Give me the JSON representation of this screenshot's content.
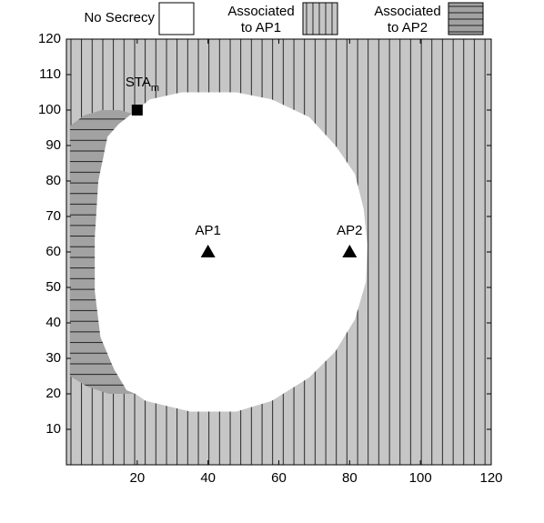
{
  "chart_data": {
    "type": "region-map",
    "xlim": [
      0,
      120
    ],
    "ylim": [
      0,
      120
    ],
    "xticks": [
      20,
      40,
      60,
      80,
      100,
      120
    ],
    "yticks": [
      10,
      20,
      30,
      40,
      50,
      60,
      70,
      80,
      90,
      100,
      110,
      120
    ],
    "regions": [
      {
        "name": [
          "No Secrecy"
        ],
        "color": "#ffffff",
        "hatch": "none",
        "x": [
          18.5,
          23.6,
          32.6,
          48,
          58,
          68.6,
          76,
          81.5,
          84,
          85,
          84.6,
          81.5,
          76,
          68.6,
          58,
          48,
          35,
          22.4,
          19.5,
          17,
          13.4,
          9.6,
          8,
          8,
          9,
          11.6,
          14.7
        ],
        "y": [
          99,
          103,
          105,
          105,
          103,
          98,
          90,
          82,
          72,
          62,
          51.5,
          41,
          32,
          24.6,
          18,
          15,
          15,
          18,
          20,
          21,
          27,
          36,
          49,
          64,
          80,
          92.5,
          96
        ]
      },
      {
        "name": [
          "Associated",
          "to AP1"
        ],
        "color": "#c6c6c6",
        "hatch": "vertical"
      },
      {
        "name": [
          "Associated",
          "to AP2"
        ],
        "color": "#a2a2a2",
        "hatch": "horizontal",
        "x": [
          1,
          5,
          10,
          15,
          18.5,
          14.7,
          11.6,
          9,
          8,
          8,
          9.6,
          13.4,
          17,
          19.5,
          12,
          6,
          1
        ],
        "y": [
          95.5,
          98.5,
          100,
          100,
          99,
          96,
          92.5,
          80,
          64,
          49,
          36,
          27,
          21,
          20,
          20,
          22,
          25
        ]
      }
    ],
    "points": [
      {
        "label": "AP1",
        "x": 40,
        "y": 60,
        "marker": "triangle"
      },
      {
        "label": "AP2",
        "x": 80,
        "y": 60,
        "marker": "triangle"
      },
      {
        "label": "STA",
        "subscript": "m",
        "x": 20,
        "y": 100,
        "marker": "square"
      }
    ]
  }
}
